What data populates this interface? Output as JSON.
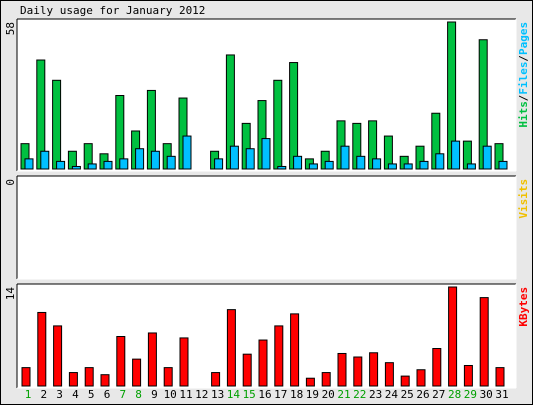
{
  "title": "Daily usage for January 2012",
  "colors": {
    "background": "#E8E8E8",
    "panel": "#FFFFFF",
    "hits": "#00C040",
    "files": "#00C0FF",
    "pages": "#00C0FF",
    "visits": "#F0C000",
    "kbytes": "#FF0000",
    "weekend_label": "#00A000",
    "weekday_label": "#000000",
    "text": "#000000"
  },
  "chart_data": [
    {
      "type": "bar",
      "panel": "hits-files-pages",
      "legend": [
        "Pages",
        "Files",
        "Hits"
      ],
      "ymax_label": "58",
      "ylim": [
        0,
        58
      ],
      "categories": [
        "1",
        "2",
        "3",
        "4",
        "5",
        "6",
        "7",
        "8",
        "9",
        "10",
        "11",
        "12",
        "13",
        "14",
        "15",
        "16",
        "17",
        "18",
        "19",
        "20",
        "21",
        "22",
        "23",
        "24",
        "25",
        "26",
        "27",
        "28",
        "29",
        "30",
        "31"
      ],
      "series": [
        {
          "name": "Hits",
          "values": [
            10,
            43,
            35,
            7,
            10,
            6,
            29,
            15,
            31,
            10,
            28,
            0,
            7,
            45,
            18,
            27,
            35,
            42,
            4,
            7,
            19,
            18,
            19,
            13,
            5,
            9,
            22,
            58,
            11,
            51,
            10
          ]
        },
        {
          "name": "Files",
          "values": [
            4,
            7,
            3,
            1,
            2,
            3,
            4,
            8,
            7,
            5,
            13,
            0,
            4,
            9,
            8,
            12,
            1,
            5,
            2,
            3,
            9,
            5,
            4,
            2,
            2,
            3,
            6,
            11,
            2,
            9,
            3
          ]
        },
        {
          "name": "Pages",
          "values": [
            4,
            7,
            3,
            1,
            2,
            3,
            4,
            8,
            7,
            5,
            13,
            0,
            4,
            9,
            8,
            12,
            1,
            5,
            2,
            3,
            9,
            5,
            4,
            2,
            2,
            3,
            6,
            11,
            2,
            9,
            3
          ]
        }
      ]
    },
    {
      "type": "bar",
      "panel": "visits",
      "legend": [
        "Visits"
      ],
      "ymax_label": "0",
      "ylim": [
        0,
        1
      ],
      "categories": [
        "1",
        "2",
        "3",
        "4",
        "5",
        "6",
        "7",
        "8",
        "9",
        "10",
        "11",
        "12",
        "13",
        "14",
        "15",
        "16",
        "17",
        "18",
        "19",
        "20",
        "21",
        "22",
        "23",
        "24",
        "25",
        "26",
        "27",
        "28",
        "29",
        "30",
        "31"
      ],
      "series": [
        {
          "name": "Visits",
          "values": [
            0,
            0,
            0,
            0,
            0,
            0,
            0,
            0,
            0,
            0,
            0,
            0,
            0,
            0,
            0,
            0,
            0,
            0,
            0,
            0,
            0,
            0,
            0,
            0,
            0,
            0,
            0,
            0,
            0,
            0,
            0
          ]
        }
      ]
    },
    {
      "type": "bar",
      "panel": "kbytes",
      "legend": [
        "KBytes"
      ],
      "ymax_label": "14",
      "ylim": [
        0,
        14
      ],
      "categories": [
        "1",
        "2",
        "3",
        "4",
        "5",
        "6",
        "7",
        "8",
        "9",
        "10",
        "11",
        "12",
        "13",
        "14",
        "15",
        "16",
        "17",
        "18",
        "19",
        "20",
        "21",
        "22",
        "23",
        "24",
        "25",
        "26",
        "27",
        "28",
        "29",
        "30",
        "31"
      ],
      "series": [
        {
          "name": "KBytes",
          "values": [
            2.6,
            10.4,
            8.5,
            1.9,
            2.6,
            1.6,
            7.0,
            3.8,
            7.5,
            2.6,
            6.8,
            0,
            1.9,
            10.8,
            4.5,
            6.5,
            8.5,
            10.2,
            1.1,
            1.9,
            4.6,
            4.1,
            4.7,
            3.3,
            1.4,
            2.3,
            5.3,
            14,
            2.9,
            12.5,
            2.6
          ]
        }
      ]
    }
  ],
  "weekend_days": [
    1,
    7,
    8,
    14,
    15,
    21,
    22,
    28,
    29
  ]
}
